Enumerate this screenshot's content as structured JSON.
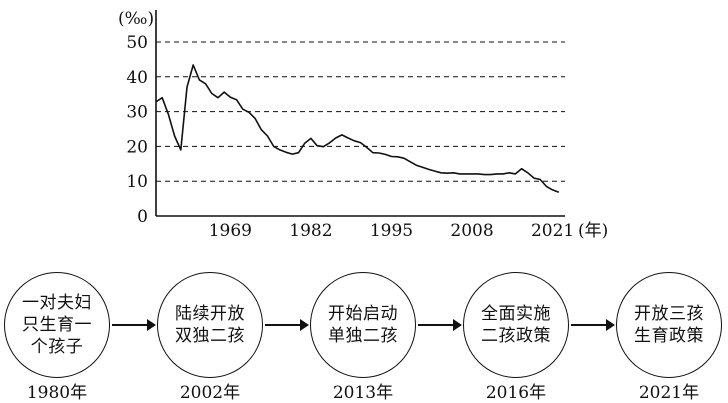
{
  "chart_data": {
    "type": "line",
    "y_unit": "(‰)",
    "x_unit": "(年)",
    "xlim": [
      1957,
      2023
    ],
    "ylim": [
      0,
      50
    ],
    "y_ticks": [
      "0",
      "10",
      "20",
      "30",
      "40",
      "50"
    ],
    "x_ticks": [
      1969,
      1982,
      1995,
      2008,
      2021
    ],
    "grid": "horizontal dashed",
    "series": [
      {
        "x": [
          1957,
          1958,
          1959,
          1960,
          1961,
          1962,
          1963,
          1964,
          1965,
          1966,
          1967,
          1968,
          1969,
          1970,
          1971,
          1972,
          1973,
          1974,
          1975,
          1976,
          1977,
          1978,
          1979,
          1980,
          1981,
          1982,
          1983,
          1984,
          1985,
          1986,
          1987,
          1988,
          1989,
          1990,
          1991,
          1992,
          1993,
          1994,
          1995,
          1996,
          1997,
          1998,
          1999,
          2000,
          2001,
          2002,
          2003,
          2004,
          2005,
          2006,
          2007,
          2008,
          2009,
          2010,
          2011,
          2012,
          2013,
          2014,
          2015,
          2016,
          2017,
          2018,
          2019,
          2020,
          2021,
          2022
        ],
        "y": [
          32.8,
          34.0,
          29.2,
          23.0,
          19.0,
          37.0,
          43.4,
          39.1,
          38.0,
          35.2,
          34.0,
          35.6,
          34.1,
          33.4,
          30.7,
          29.8,
          28.0,
          24.8,
          23.0,
          20.0,
          19.0,
          18.3,
          17.8,
          18.2,
          20.9,
          22.3,
          20.2,
          19.9,
          21.0,
          22.4,
          23.3,
          22.4,
          21.6,
          21.1,
          19.7,
          18.2,
          18.1,
          17.7,
          17.1,
          17.0,
          16.6,
          15.6,
          14.6,
          14.0,
          13.4,
          12.9,
          12.4,
          12.3,
          12.4,
          12.1,
          12.1,
          12.1,
          12.1,
          11.9,
          11.9,
          12.1,
          12.1,
          12.4,
          12.1,
          13.6,
          12.4,
          10.9,
          10.5,
          8.5,
          7.5,
          6.8
        ]
      }
    ]
  },
  "policies": [
    {
      "text": "一对夫妇只生育一个孩子",
      "year": "1980年"
    },
    {
      "text": "陆续开放双独二孩",
      "year": "2002年"
    },
    {
      "text": "开始启动单独二孩",
      "year": "2013年"
    },
    {
      "text": "全面实施二孩政策",
      "year": "2016年"
    },
    {
      "text": "开放三孩生育政策",
      "year": "2021年"
    }
  ]
}
